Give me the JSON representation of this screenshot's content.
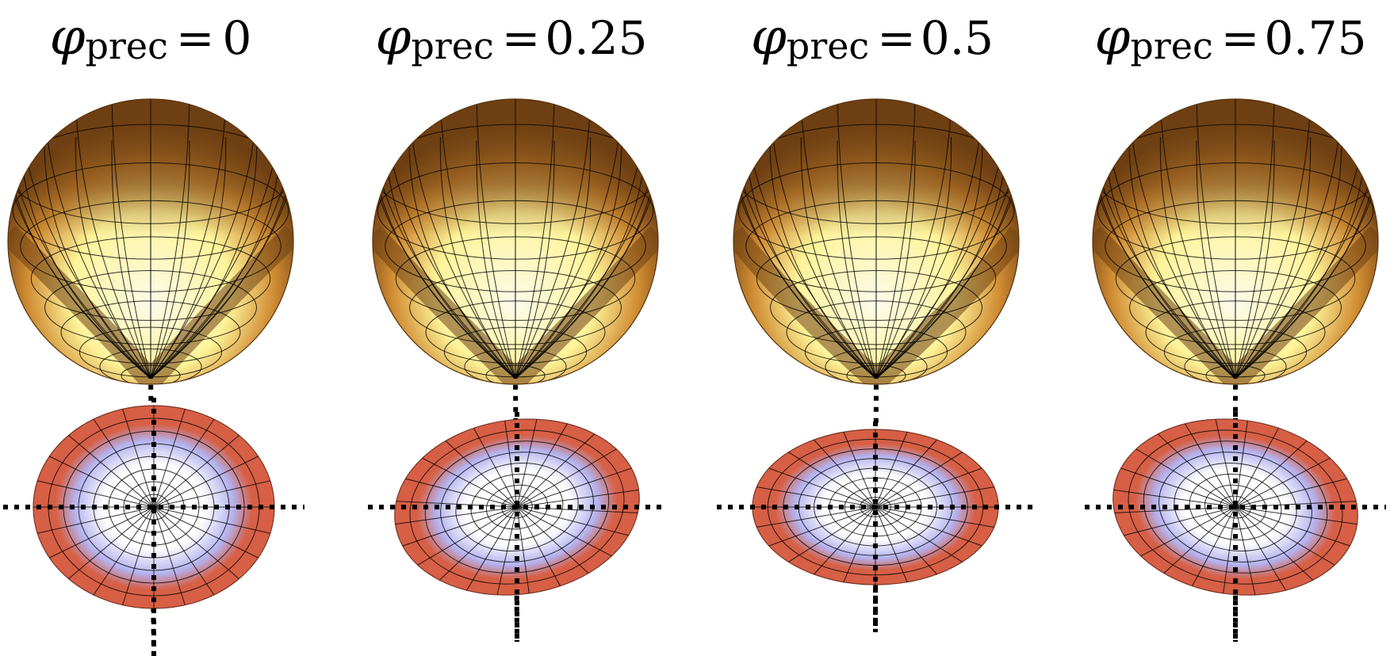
{
  "figure": {
    "panels": [
      {
        "symbol": "φ",
        "subscript": "prec",
        "equals": "=",
        "value": "0",
        "ellipse_rx": 152,
        "ellipse_ry": 128,
        "ellipse_rot": 0
      },
      {
        "symbol": "φ",
        "subscript": "prec",
        "equals": "=",
        "value": "0.25",
        "ellipse_rx": 155,
        "ellipse_ry": 110,
        "ellipse_rot": -8
      },
      {
        "symbol": "φ",
        "subscript": "prec",
        "equals": "=",
        "value": "0.5",
        "ellipse_rx": 155,
        "ellipse_ry": 98,
        "ellipse_rot": 0
      },
      {
        "symbol": "φ",
        "subscript": "prec",
        "equals": "=",
        "value": "0.75",
        "ellipse_rx": 155,
        "ellipse_ry": 110,
        "ellipse_rot": 8
      }
    ],
    "colors": {
      "sphere_dark": "#6e3f12",
      "sphere_mid": "#d08c33",
      "sphere_light": "#fff49a",
      "sphere_pale": "#fbfbea",
      "disk_rim": "#d65f45",
      "disk_halo": "#b4b2ee",
      "disk_center": "#ffffff"
    }
  }
}
